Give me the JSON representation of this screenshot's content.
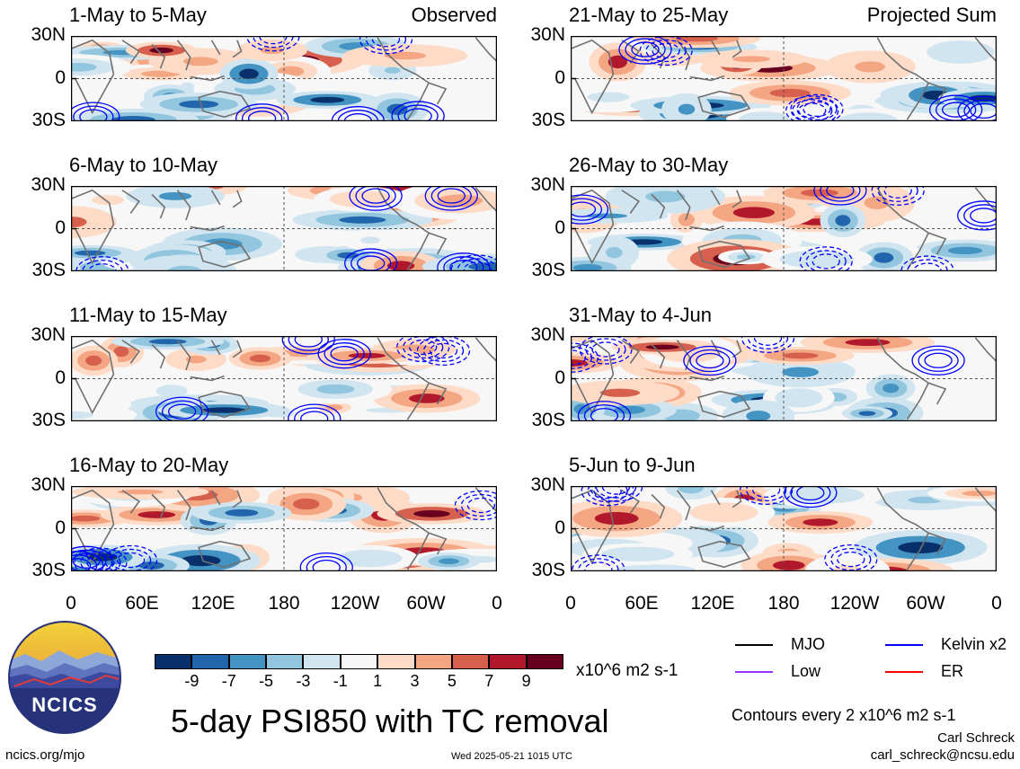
{
  "chart_data": {
    "type": "heatmap",
    "title": "5-day PSI850 with TC removal",
    "units": "x10^6 m2 s-1",
    "contour_note": "Contours every 2 x10^6 m2 s-1",
    "y_ticks": [
      "30N",
      "0",
      "30S"
    ],
    "x_ticks": [
      "0",
      "60E",
      "120E",
      "180",
      "120W",
      "60W",
      "0"
    ],
    "column_labels": [
      "Observed",
      "Projected Sum"
    ],
    "panels": [
      {
        "period": "1-May to 5-May",
        "column": "Observed"
      },
      {
        "period": "6-May to 10-May",
        "column": "Observed"
      },
      {
        "period": "11-May to 15-May",
        "column": "Observed"
      },
      {
        "period": "16-May to 20-May",
        "column": "Observed"
      },
      {
        "period": "21-May to 25-May",
        "column": "Projected Sum"
      },
      {
        "period": "26-May to 30-May",
        "column": "Projected Sum"
      },
      {
        "period": "31-May to 4-Jun",
        "column": "Projected Sum"
      },
      {
        "period": "5-Jun to 9-Jun",
        "column": "Projected Sum"
      }
    ],
    "colorbar": {
      "labels": [
        "-9",
        "-7",
        "-5",
        "-3",
        "-1",
        "1",
        "3",
        "5",
        "7",
        "9"
      ],
      "colors": [
        "#08306b",
        "#2166ac",
        "#4393c3",
        "#92c5de",
        "#d1e5f0",
        "#f7f7f7",
        "#fddbc7",
        "#f4a582",
        "#d6604d",
        "#b2182b",
        "#67001f"
      ]
    },
    "legend": [
      {
        "label": "MJO",
        "color": "#000000"
      },
      {
        "label": "Kelvin x2",
        "color": "#0000ff"
      },
      {
        "label": "Low",
        "color": "#9933ff"
      },
      {
        "label": "ER",
        "color": "#ff0000"
      }
    ]
  },
  "logo": {
    "text": "NCICS"
  },
  "footer": {
    "url": "ncics.org/mjo",
    "timestamp": "Wed 2025-05-21 1015 UTC",
    "author": "Carl Schreck",
    "email": "carl_schreck@ncsu.edu"
  }
}
